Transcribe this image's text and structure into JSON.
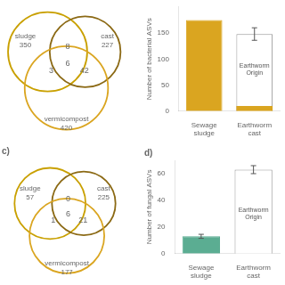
{
  "chart_data": [
    {
      "type": "venn",
      "sets": [
        {
          "name": "sludge",
          "value": 350,
          "color": "#C9A000"
        },
        {
          "name": "cast",
          "value": 227,
          "color": "#8B6914"
        },
        {
          "name": "vermicompost",
          "value": 420,
          "color": "#DAA520"
        }
      ],
      "intersections": [
        {
          "sets": [
            "sludge",
            "cast"
          ],
          "value": 8
        },
        {
          "sets": [
            "sludge",
            "cast",
            "vermicompost"
          ],
          "value": 6
        },
        {
          "sets": [
            "cast",
            "vermicompost"
          ],
          "value": 42
        },
        {
          "sets": [
            "sludge",
            "vermicompost"
          ],
          "value": 3
        }
      ]
    },
    {
      "type": "bar",
      "ylabel": "Number of bacterial ASVs",
      "categories": [
        "Sewage sludge",
        "Earthworm cast"
      ],
      "series": [
        {
          "values": [
            175,
            148
          ],
          "colors": [
            "#DAA520",
            "white"
          ],
          "errors": [
            null,
            12
          ]
        },
        {
          "values": [
            null,
            10
          ],
          "color": "#DAA520"
        }
      ],
      "annotations": [
        {
          "text": "Earthworm\nOrigin",
          "x": "Earthworm cast",
          "y": 80
        }
      ],
      "ylim": [
        0,
        200
      ],
      "yticks": [
        0,
        50,
        100,
        150
      ],
      "grid": false
    },
    {
      "type": "venn",
      "title": "c)",
      "sets": [
        {
          "name": "sludge",
          "value": 57,
          "color": "#C9A000"
        },
        {
          "name": "cast",
          "value": 225,
          "color": "#8B6914"
        },
        {
          "name": "vermicompost",
          "value": 177,
          "color": "#DAA520"
        }
      ],
      "intersections": [
        {
          "sets": [
            "sludge",
            "cast"
          ],
          "value": 0
        },
        {
          "sets": [
            "sludge",
            "cast",
            "vermicompost"
          ],
          "value": 6
        },
        {
          "sets": [
            "cast",
            "vermicompost"
          ],
          "value": 21
        },
        {
          "sets": [
            "sludge",
            "vermicompost"
          ],
          "value": 1
        }
      ]
    },
    {
      "type": "bar",
      "title": "d)",
      "ylabel": "Number of fungal ASVs",
      "categories": [
        "Sewage sludge",
        "Earthworm cast"
      ],
      "series": [
        {
          "values": [
            13,
            63
          ],
          "colors": [
            "#5BAD92",
            "white"
          ],
          "errors": [
            1.5,
            3
          ]
        }
      ],
      "annotations": [
        {
          "text": "Earthworm\nOrigin",
          "x": "Earthworm cast",
          "y": 30
        }
      ],
      "ylim": [
        0,
        70
      ],
      "yticks": [
        0,
        20,
        40,
        60
      ],
      "grid": false
    }
  ]
}
